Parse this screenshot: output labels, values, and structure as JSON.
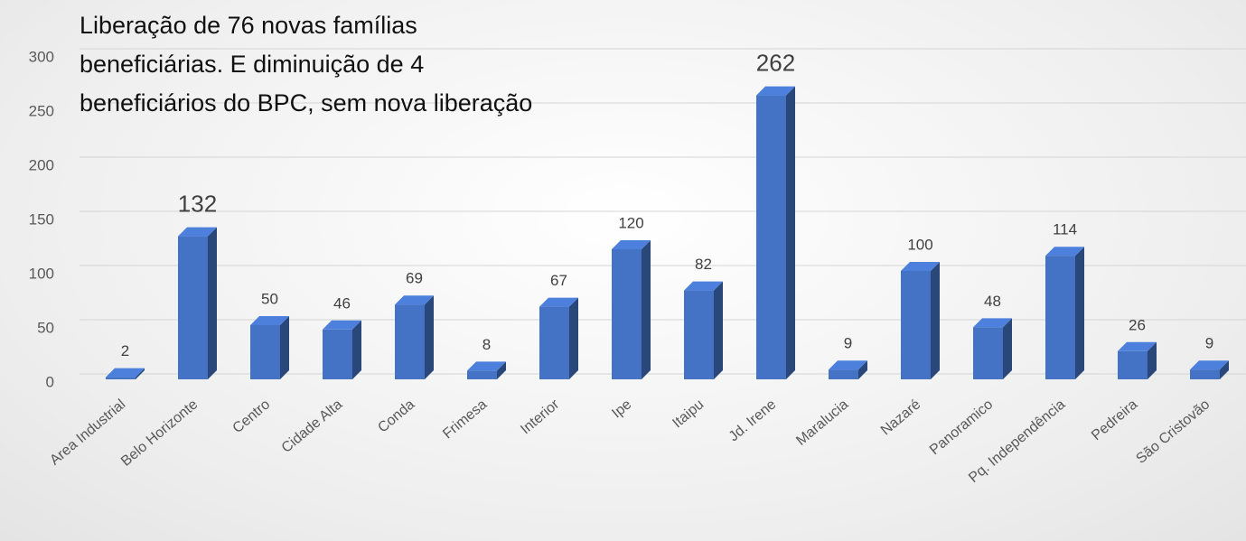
{
  "chart_data": {
    "type": "bar3d",
    "title": [
      "Liberação de 76 novas famílias",
      "beneficiárias. E diminuição de 4",
      "beneficiários do BPC, sem nova liberação"
    ],
    "categories": [
      "Area Industrial",
      "Belo Horizonte",
      "Centro",
      "Cidade Alta",
      "Conda",
      "Frimesa",
      "Interior",
      "Ipe",
      "Itaipu",
      "Jd. Irene",
      "Maralucia",
      "Nazaré",
      "Panoramico",
      "Pq. Independência",
      "Pedreira",
      "São Cristovão"
    ],
    "values": [
      2,
      132,
      50,
      46,
      69,
      8,
      67,
      120,
      82,
      262,
      9,
      100,
      48,
      114,
      26,
      9
    ],
    "color": "#4472c4",
    "ylim": [
      0,
      300
    ],
    "yticks": [
      0,
      50,
      100,
      150,
      200,
      250,
      300
    ],
    "grid": true
  }
}
